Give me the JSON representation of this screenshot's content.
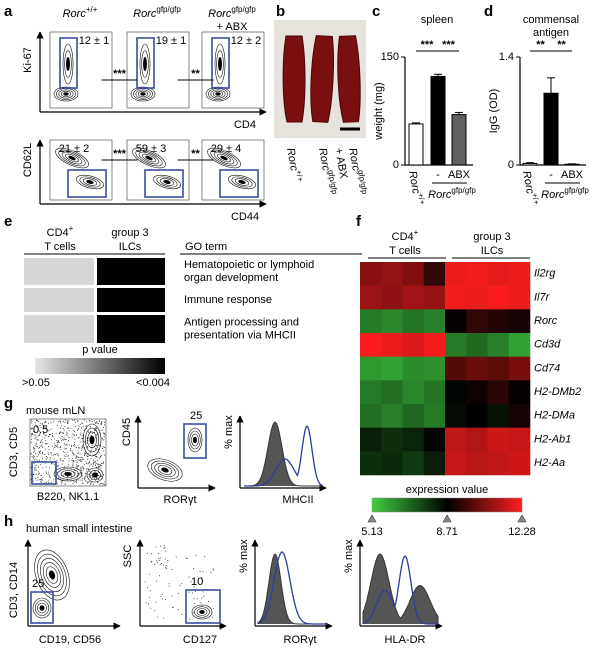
{
  "figure": {
    "panel_labels": [
      "a",
      "b",
      "c",
      "d",
      "e",
      "f",
      "g",
      "h"
    ],
    "a": {
      "genotypes": [
        {
          "base": "Rorc",
          "sup": "+/+"
        },
        {
          "base": "Rorc",
          "sup": "gfp/gfp"
        },
        {
          "base": "Rorc",
          "sup": "gfp/gfp"
        }
      ],
      "abx": "+ ABX",
      "top": {
        "y_label": "Ki-67",
        "x_label": "CD4",
        "stats": [
          "12 ± 1",
          "19 ± 1",
          "12 ± 2"
        ],
        "significance": [
          "***",
          "**"
        ]
      },
      "bottom": {
        "y_label": "CD62L",
        "x_label": "CD44",
        "stats": [
          "21 ± 2",
          "59 ± 3",
          "29 ± 4"
        ],
        "significance": [
          "***",
          "**"
        ]
      }
    },
    "b": {
      "labels": [
        {
          "base": "Rorc",
          "sup": "+/+"
        },
        {
          "base": "Rorc",
          "sup": "gfp/gfp"
        },
        {
          "base": "Rorc",
          "sup": "gfp/gfp"
        }
      ],
      "abx": "+ ABX"
    },
    "e": {
      "headers": [
        {
          "base": "CD4",
          "sup": "+",
          "second": "T cells"
        },
        {
          "base": "group 3",
          "second": "ILCs"
        }
      ],
      "go_header": "GO term",
      "terms": [
        [
          "Hematopoietic or lymphoid",
          "organ development"
        ],
        [
          "Immune response"
        ],
        [
          "Antigen processing and",
          "presentation via MHCII"
        ]
      ],
      "cell_colors": [
        [
          "#d6d6d6",
          "#000000"
        ],
        [
          "#d6d6d6",
          "#000000"
        ],
        [
          "#d6d6d6",
          "#000000"
        ]
      ],
      "legend_title": "p value",
      "legend_low": ">0.05",
      "legend_high": "<0.004",
      "legend_colors": [
        "#e6e6e6",
        "#000000"
      ]
    },
    "f": {
      "headers": [
        {
          "base": "CD4",
          "sup": "+",
          "second": "T cells"
        },
        {
          "base": "group 3",
          "second": "ILCs"
        }
      ],
      "genes": [
        "Il2rg",
        "Il7r",
        "Rorc",
        "Cd3d",
        "Cd74",
        "H2-DMb2",
        "H2-DMa",
        "H2-Ab1",
        "H2-Aa"
      ],
      "values": [
        [
          10.6,
          10.8,
          10.5,
          9.4,
          12.0,
          12.1,
          11.9,
          12.0
        ],
        [
          10.9,
          10.7,
          11.0,
          10.8,
          12.1,
          12.0,
          12.2,
          12.0
        ],
        [
          6.6,
          6.4,
          6.7,
          6.5,
          8.8,
          9.4,
          9.2,
          9.0
        ],
        [
          12.2,
          12.0,
          11.8,
          12.1,
          6.6,
          6.9,
          6.5,
          5.9
        ],
        [
          6.1,
          5.9,
          6.3,
          6.2,
          9.9,
          10.2,
          10.0,
          10.4
        ],
        [
          6.6,
          6.8,
          6.4,
          6.7,
          8.6,
          8.9,
          9.3,
          8.8
        ],
        [
          6.8,
          6.5,
          6.9,
          6.6,
          8.5,
          8.7,
          8.4,
          9.0
        ],
        [
          8.2,
          7.9,
          8.1,
          8.6,
          11.4,
          11.2,
          11.6,
          11.5
        ],
        [
          7.9,
          8.0,
          7.7,
          8.2,
          11.5,
          11.3,
          11.4,
          11.6
        ]
      ],
      "legend_title": "expression value",
      "ticks": [
        5.13,
        8.71,
        12.28
      ],
      "colormap": [
        "#3fcf3f",
        "#000000",
        "#ff1e1e"
      ]
    },
    "g": {
      "title": "mouse mLN",
      "plots": [
        {
          "y_label": "CD3, CD5",
          "x_label": "B220, NK1.1",
          "gate": "0.5"
        },
        {
          "y_label": "CD45",
          "x_label": "RORγt",
          "gate": "25"
        },
        {
          "y_label": "% max",
          "x_label": "MHCII"
        }
      ]
    },
    "h": {
      "title": "human small intestine",
      "plots": [
        {
          "y_label": "CD3, CD14",
          "x_label": "CD19, CD56",
          "gate": "25"
        },
        {
          "y_label": "SSC",
          "x_label": "CD127",
          "gate": "10"
        },
        {
          "y_label": "% max",
          "x_label": "RORγt"
        },
        {
          "y_label": "% max",
          "x_label": "HLA-DR"
        }
      ]
    }
  },
  "chart_data": [
    {
      "type": "bar",
      "title": [
        "spleen"
      ],
      "y_label": "weight (mg)",
      "categories": [
        {
          "base": "Rorc",
          "sup": "+/+"
        },
        "-",
        "ABX"
      ],
      "group_label": {
        "base": "Rorc",
        "sup": "gfp/gfp"
      },
      "values": [
        57,
        123,
        70
      ],
      "errors": [
        1.5,
        3,
        3
      ],
      "colors": [
        "#ffffff",
        "#000000",
        "#606060"
      ],
      "significance": [
        "***",
        "***"
      ],
      "ylim": [
        0,
        150
      ],
      "yticks": [
        0,
        150
      ]
    },
    {
      "type": "bar",
      "title": [
        "commensal",
        "antigen"
      ],
      "y_label": "IgG (OD)",
      "categories": [
        {
          "base": "Rorc",
          "sup": "+/+"
        },
        "-",
        "ABX"
      ],
      "group_label": {
        "base": "Rorc",
        "sup": "gfp/gfp"
      },
      "values": [
        0.02,
        0.93,
        0.01
      ],
      "errors": [
        0.01,
        0.2,
        0.005
      ],
      "colors": [
        "#ffffff",
        "#000000",
        "#606060"
      ],
      "significance": [
        "**",
        "**"
      ],
      "ylim": [
        0,
        1.4
      ],
      "yticks": [
        0,
        1.4
      ]
    }
  ]
}
